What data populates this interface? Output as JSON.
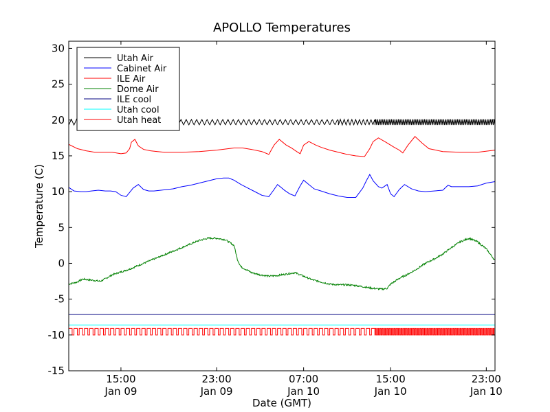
{
  "chart_data": {
    "type": "line",
    "title": "APOLLO Temperatures",
    "xlabel": "Date (GMT)",
    "ylabel": "Temperature (C)",
    "xlim": [
      10.5,
      35.0
    ],
    "ylim": [
      -15,
      31
    ],
    "yticks": [
      -15,
      -10,
      -5,
      0,
      5,
      10,
      15,
      20,
      25,
      30
    ],
    "yticklabels": [
      "-15",
      "-10",
      "-5",
      "0",
      "5",
      "10",
      "15",
      "20",
      "25",
      "30"
    ],
    "xticks": [
      {
        "value": 13.5,
        "line1": "15:00",
        "line2": "Jan 09"
      },
      {
        "value": 19.0,
        "line1": "23:00",
        "line2": "Jan 09"
      },
      {
        "value": 24.0,
        "line1": "07:00",
        "line2": "Jan 10"
      },
      {
        "value": 29.0,
        "line1": "15:00",
        "line2": "Jan 10"
      },
      {
        "value": 34.5,
        "line1": "23:00",
        "line2": "Jan 10"
      }
    ],
    "legend_position": "top-left",
    "series": [
      {
        "name": "Utah Air",
        "color": "#000000",
        "style": "oscillation",
        "base": 19.7,
        "amp": 0.4,
        "segments": [
          {
            "from": 10.5,
            "to": 26.0,
            "period": 0.3
          },
          {
            "from": 26.0,
            "to": 28.1,
            "period": 0.22
          },
          {
            "from": 28.1,
            "to": 35.0,
            "period": 0.1
          }
        ]
      },
      {
        "name": "Cabinet Air",
        "color": "#0000ff",
        "style": "line",
        "x": [
          10.5,
          10.8,
          11.2,
          11.5,
          11.8,
          12.2,
          12.6,
          12.9,
          13.2,
          13.5,
          13.8,
          14.0,
          14.2,
          14.5,
          14.8,
          15.1,
          15.4,
          15.8,
          16.5,
          17.0,
          17.5,
          18.0,
          18.5,
          19.0,
          19.4,
          19.7,
          20.0,
          20.4,
          20.8,
          21.2,
          21.6,
          22.0,
          22.3,
          22.5,
          22.7,
          22.9,
          23.2,
          23.5,
          23.8,
          24.0,
          24.3,
          24.6,
          25.0,
          25.5,
          26.0,
          26.5,
          27.0,
          27.4,
          27.6,
          27.8,
          28.0,
          28.3,
          28.5,
          28.8,
          29.0,
          29.2,
          29.5,
          29.8,
          30.2,
          30.6,
          31.0,
          31.5,
          32.0,
          32.3,
          32.5,
          33.0,
          33.5,
          34.0,
          34.5,
          35.0
        ],
        "y": [
          10.6,
          10.1,
          10.0,
          10.0,
          10.1,
          10.2,
          10.1,
          10.1,
          10.0,
          9.5,
          9.3,
          9.9,
          10.5,
          11.0,
          10.3,
          10.1,
          10.1,
          10.2,
          10.4,
          10.7,
          10.9,
          11.2,
          11.5,
          11.8,
          11.9,
          11.9,
          11.6,
          11.0,
          10.5,
          10.0,
          9.5,
          9.3,
          10.3,
          11.0,
          10.6,
          10.2,
          9.7,
          9.4,
          10.8,
          11.6,
          11.0,
          10.4,
          10.1,
          9.7,
          9.4,
          9.2,
          9.2,
          10.5,
          11.5,
          12.4,
          11.5,
          10.7,
          10.5,
          11.0,
          9.7,
          9.3,
          10.3,
          11.0,
          10.4,
          10.1,
          10.0,
          10.1,
          10.2,
          10.9,
          10.7,
          10.7,
          10.7,
          10.8,
          11.2,
          11.4
        ]
      },
      {
        "name": "ILE Air",
        "color": "#ff0000",
        "style": "line",
        "x": [
          10.5,
          11.0,
          11.5,
          12.0,
          12.5,
          13.0,
          13.5,
          13.8,
          14.0,
          14.1,
          14.3,
          14.5,
          14.8,
          15.2,
          15.6,
          16.0,
          16.5,
          17.0,
          18.0,
          19.0,
          20.0,
          20.5,
          21.0,
          21.6,
          22.0,
          22.3,
          22.6,
          23.0,
          23.3,
          23.6,
          23.8,
          24.0,
          24.3,
          24.7,
          25.0,
          25.5,
          26.0,
          26.5,
          27.0,
          27.5,
          27.8,
          28.0,
          28.3,
          28.8,
          29.2,
          29.5,
          29.7,
          30.0,
          30.4,
          30.8,
          31.2,
          32.0,
          33.0,
          34.0,
          35.0
        ],
        "y": [
          16.6,
          16.0,
          15.7,
          15.5,
          15.5,
          15.5,
          15.3,
          15.4,
          16.0,
          16.9,
          17.3,
          16.4,
          15.9,
          15.7,
          15.6,
          15.5,
          15.5,
          15.5,
          15.6,
          15.8,
          16.1,
          16.1,
          15.9,
          15.6,
          15.2,
          16.5,
          17.3,
          16.5,
          16.1,
          15.6,
          15.3,
          16.5,
          17.0,
          16.5,
          16.2,
          15.8,
          15.5,
          15.2,
          15.0,
          14.9,
          16.0,
          17.0,
          17.5,
          16.8,
          16.2,
          15.8,
          15.4,
          16.5,
          17.7,
          16.8,
          16.0,
          15.6,
          15.5,
          15.5,
          15.8
        ]
      },
      {
        "name": "Dome Air",
        "color": "#008000",
        "style": "noisy",
        "noise": 0.12,
        "x": [
          10.5,
          11.0,
          11.3,
          12.0,
          12.3,
          12.5,
          13.0,
          13.5,
          14.0,
          14.5,
          15.0,
          15.5,
          16.0,
          16.5,
          17.0,
          17.5,
          18.0,
          18.5,
          19.0,
          19.5,
          20.0,
          20.2,
          20.4,
          20.8,
          21.0,
          21.5,
          22.0,
          22.5,
          23.0,
          23.5,
          24.0,
          24.5,
          25.0,
          25.5,
          26.0,
          26.5,
          27.0,
          27.5,
          28.0,
          28.5,
          28.8,
          29.0,
          29.5,
          30.0,
          30.5,
          31.0,
          31.5,
          32.0,
          32.5,
          33.0,
          33.5,
          34.0,
          34.5,
          35.0
        ],
        "y": [
          -2.9,
          -2.6,
          -2.2,
          -2.4,
          -2.5,
          -2.3,
          -1.6,
          -1.2,
          -0.8,
          -0.3,
          0.2,
          0.7,
          1.2,
          1.7,
          2.2,
          2.7,
          3.2,
          3.5,
          3.5,
          3.3,
          2.5,
          0.5,
          -0.5,
          -1.0,
          -1.3,
          -1.6,
          -1.8,
          -1.7,
          -1.5,
          -1.3,
          -1.8,
          -2.3,
          -2.6,
          -2.9,
          -3.0,
          -3.0,
          -3.1,
          -3.3,
          -3.5,
          -3.6,
          -3.5,
          -2.9,
          -2.1,
          -1.5,
          -0.8,
          0.0,
          0.6,
          1.3,
          2.2,
          3.0,
          3.5,
          3.0,
          2.0,
          0.4
        ]
      },
      {
        "name": "ILE cool",
        "color": "#000080",
        "style": "line",
        "x": [
          10.5,
          35.0
        ],
        "y": [
          -7.1,
          -7.1
        ]
      },
      {
        "name": "Utah cool",
        "color": "#00ffff",
        "style": "line",
        "x": [
          10.5,
          35.0
        ],
        "y": [
          -8.6,
          -8.6
        ]
      },
      {
        "name": "Utah heat",
        "color": "#ff0000",
        "style": "square",
        "high": -9.1,
        "low": -10.0,
        "segments": [
          {
            "from": 10.5,
            "to": 28.1,
            "period": 0.3,
            "duty": 0.65
          },
          {
            "from": 28.1,
            "to": 35.0,
            "period": 0.1,
            "duty": 0.5
          }
        ]
      }
    ]
  }
}
